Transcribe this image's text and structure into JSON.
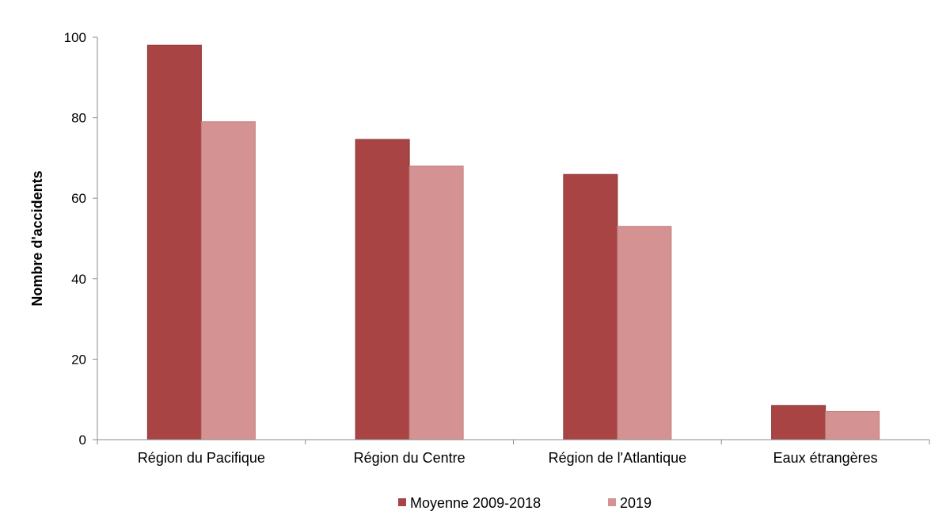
{
  "chart_data": {
    "type": "bar",
    "title": "",
    "xlabel": "",
    "ylabel": "Nombre d'accidents",
    "ylim": [
      0,
      100
    ],
    "yticks": [
      0,
      20,
      40,
      60,
      80,
      100
    ],
    "categories": [
      "Région du Pacifique",
      "Région du Centre",
      "Région de l'Atlantique",
      "Eaux étrangères"
    ],
    "series": [
      {
        "name": "Moyenne 2009-2018",
        "values": [
          98,
          74.6,
          65.9,
          8.5
        ],
        "color": "#a84444"
      },
      {
        "name": "2019",
        "values": [
          79,
          68,
          53,
          7
        ],
        "color": "#d49292"
      }
    ],
    "grid": false,
    "legend_position": "bottom"
  }
}
